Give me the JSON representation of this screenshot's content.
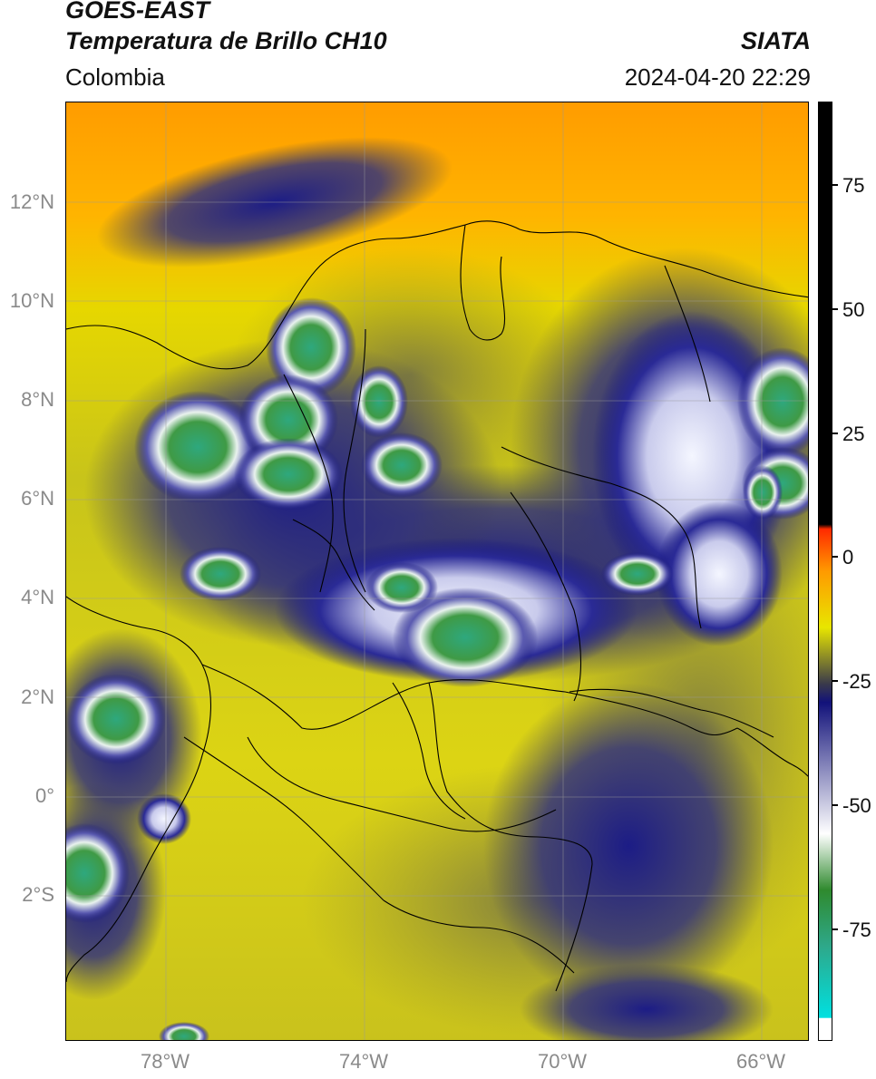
{
  "header": {
    "satellite": "GOES-EAST",
    "product": "Temperatura de Brillo CH10",
    "source": "SIATA",
    "region": "Colombia",
    "timestamp": "2024-04-20 22:29"
  },
  "map": {
    "lat_labels": [
      "12°N",
      "10°N",
      "8°N",
      "6°N",
      "4°N",
      "2°N",
      "0°",
      "2°S"
    ],
    "lon_labels": [
      "78°W",
      "74°W",
      "70°W",
      "66°W"
    ]
  },
  "colorbar": {
    "tick_labels": [
      "75",
      "50",
      "25",
      "0",
      "-25",
      "-50",
      "-75"
    ],
    "range": [
      -95,
      95
    ],
    "colors": [
      "#ffffff",
      "#00e0e0",
      "#2ea88a",
      "#2f8a2e",
      "#ffffff",
      "#12127a",
      "#3a3a4a",
      "#e8e600",
      "#ff9a00",
      "#ff2a00",
      "#000000"
    ]
  }
}
